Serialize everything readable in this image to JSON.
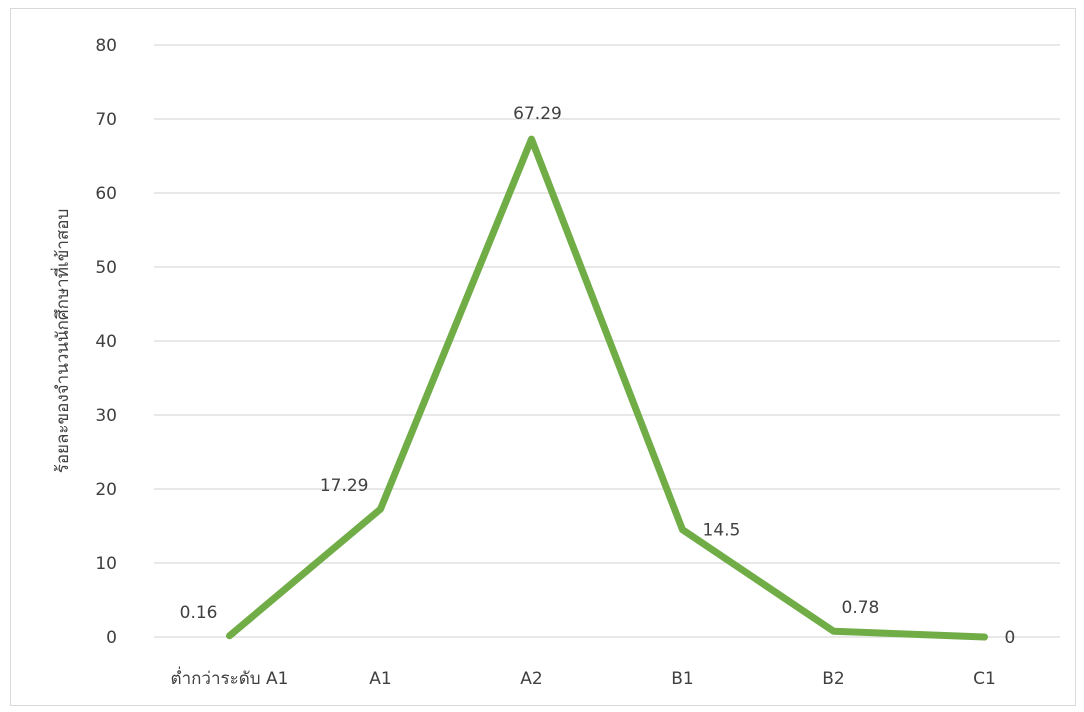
{
  "chart_data": {
    "type": "line",
    "categories": [
      "ต่ำกว่าระดับ A1",
      "A1",
      "A2",
      "B1",
      "B2",
      "C1"
    ],
    "series": [
      {
        "values": [
          0.16,
          17.29,
          67.29,
          14.5,
          0.78,
          0
        ],
        "labels": [
          "0.16",
          "17.29",
          "67.29",
          "14.5",
          "0.78",
          "0"
        ],
        "color": "#70ad47"
      }
    ],
    "ylabel": "ร้อยละของจำนวนนักศึกษาที่เข้าสอบ",
    "ylim": [
      0,
      80
    ],
    "yticks": [
      "0",
      "10",
      "20",
      "30",
      "40",
      "50",
      "60",
      "70",
      "80"
    ],
    "grid": true,
    "gridColor": "#d9d9d9"
  }
}
